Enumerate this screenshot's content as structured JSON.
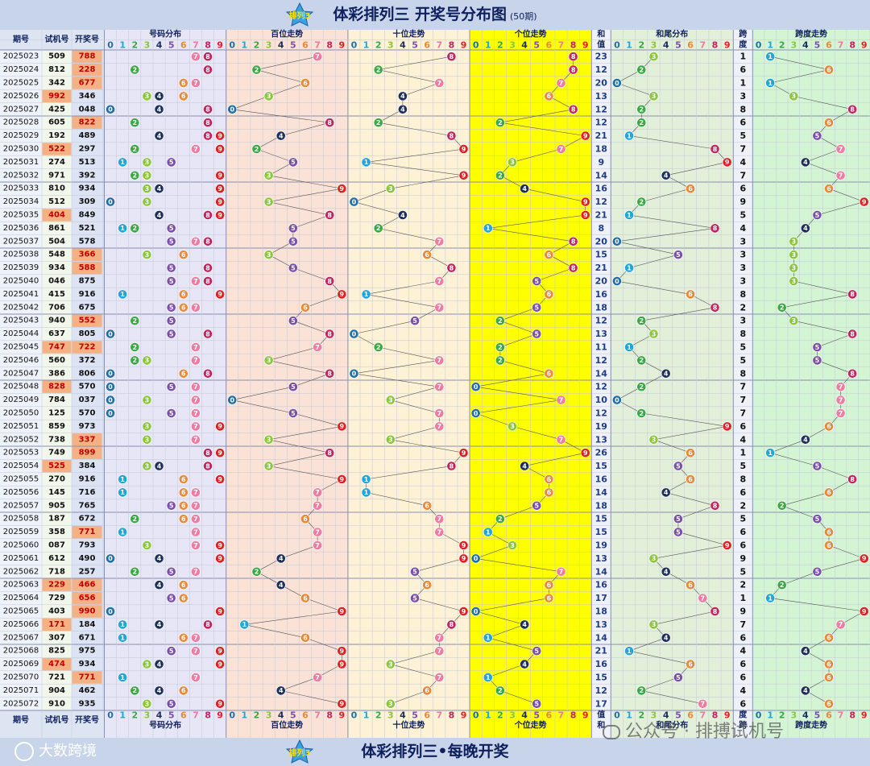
{
  "title": "体彩排列三 开奖号分布图",
  "subtitle": "(50期)",
  "footer": "体彩排列三•每晚开奖",
  "brand": "大数跨境",
  "watermark": "公众号 · 排搏试机号",
  "colors": {
    "title_bg": "#c7d4ea",
    "section_header": "#c7d4ea",
    "trial_highlight": "#f4b183",
    "num_dist_bg": "#e6e6f6",
    "hundreds_bg": "#fbe2d6",
    "tens_bg": "#fdf1d6",
    "units_bg": "#ffff00",
    "sum_tail_bg": "#e2efd9",
    "span_bg": "#d4f5d4"
  },
  "headers": {
    "issue": "期号",
    "trial": "试机号",
    "draw": "开奖号",
    "num_dist": "号码分布",
    "hundreds": "百位走势",
    "tens": "十位走势",
    "units": "个位走势",
    "sum_top": "和",
    "sum_bottom": "值",
    "sum_tail": "和尾分布",
    "span_top": "跨",
    "span_bottom": "度",
    "span_trend": "跨度走势",
    "digits": [
      "0",
      "1",
      "2",
      "3",
      "4",
      "5",
      "6",
      "7",
      "8",
      "9"
    ]
  },
  "chart_data": {
    "type": "table",
    "ball_colors": {
      "0": "#1f6fa8",
      "1": "#22a5d8",
      "2": "#3aa845",
      "3": "#8cc63f",
      "4": "#1d2f5a",
      "5": "#7b4fa8",
      "6": "#e8893a",
      "7": "#ef7ba3",
      "8": "#c0255f",
      "9": "#e02020"
    },
    "rows": [
      {
        "issue": "2025023",
        "trial": "509",
        "draw": "788",
        "sum": "23",
        "span": "1",
        "trial_match": false,
        "draw_match": true
      },
      {
        "issue": "2025024",
        "trial": "812",
        "draw": "228",
        "sum": "12",
        "span": "6",
        "trial_match": false,
        "draw_match": true
      },
      {
        "issue": "2025025",
        "trial": "342",
        "draw": "677",
        "sum": "20",
        "span": "1",
        "trial_match": false,
        "draw_match": true
      },
      {
        "issue": "2025026",
        "trial": "992",
        "draw": "346",
        "sum": "13",
        "span": "3",
        "trial_match": true,
        "draw_match": false
      },
      {
        "issue": "2025027",
        "trial": "425",
        "draw": "048",
        "sum": "12",
        "span": "8",
        "trial_match": false,
        "draw_match": false
      },
      {
        "issue": "2025028",
        "trial": "605",
        "draw": "822",
        "sum": "12",
        "span": "6",
        "trial_match": false,
        "draw_match": true
      },
      {
        "issue": "2025029",
        "trial": "192",
        "draw": "489",
        "sum": "21",
        "span": "5",
        "trial_match": false,
        "draw_match": false
      },
      {
        "issue": "2025030",
        "trial": "522",
        "draw": "297",
        "sum": "18",
        "span": "7",
        "trial_match": true,
        "draw_match": false
      },
      {
        "issue": "2025031",
        "trial": "274",
        "draw": "513",
        "sum": "9",
        "span": "4",
        "trial_match": false,
        "draw_match": false
      },
      {
        "issue": "2025032",
        "trial": "971",
        "draw": "392",
        "sum": "14",
        "span": "7",
        "trial_match": false,
        "draw_match": false
      },
      {
        "issue": "2025033",
        "trial": "810",
        "draw": "934",
        "sum": "16",
        "span": "6",
        "trial_match": false,
        "draw_match": false
      },
      {
        "issue": "2025034",
        "trial": "512",
        "draw": "309",
        "sum": "12",
        "span": "9",
        "trial_match": false,
        "draw_match": false
      },
      {
        "issue": "2025035",
        "trial": "404",
        "draw": "849",
        "sum": "21",
        "span": "5",
        "trial_match": true,
        "draw_match": false
      },
      {
        "issue": "2025036",
        "trial": "861",
        "draw": "521",
        "sum": "8",
        "span": "4",
        "trial_match": false,
        "draw_match": false
      },
      {
        "issue": "2025037",
        "trial": "504",
        "draw": "578",
        "sum": "20",
        "span": "3",
        "trial_match": false,
        "draw_match": false
      },
      {
        "issue": "2025038",
        "trial": "548",
        "draw": "366",
        "sum": "15",
        "span": "3",
        "trial_match": false,
        "draw_match": true
      },
      {
        "issue": "2025039",
        "trial": "934",
        "draw": "588",
        "sum": "21",
        "span": "3",
        "trial_match": false,
        "draw_match": true
      },
      {
        "issue": "2025040",
        "trial": "046",
        "draw": "875",
        "sum": "20",
        "span": "3",
        "trial_match": false,
        "draw_match": false
      },
      {
        "issue": "2025041",
        "trial": "415",
        "draw": "916",
        "sum": "16",
        "span": "8",
        "trial_match": false,
        "draw_match": false
      },
      {
        "issue": "2025042",
        "trial": "706",
        "draw": "675",
        "sum": "18",
        "span": "2",
        "trial_match": false,
        "draw_match": false
      },
      {
        "issue": "2025043",
        "trial": "940",
        "draw": "552",
        "sum": "12",
        "span": "3",
        "trial_match": false,
        "draw_match": true
      },
      {
        "issue": "2025044",
        "trial": "637",
        "draw": "805",
        "sum": "13",
        "span": "8",
        "trial_match": false,
        "draw_match": false
      },
      {
        "issue": "2025045",
        "trial": "747",
        "draw": "722",
        "sum": "11",
        "span": "5",
        "trial_match": true,
        "draw_match": true
      },
      {
        "issue": "2025046",
        "trial": "560",
        "draw": "372",
        "sum": "12",
        "span": "5",
        "trial_match": false,
        "draw_match": false
      },
      {
        "issue": "2025047",
        "trial": "386",
        "draw": "806",
        "sum": "14",
        "span": "8",
        "trial_match": false,
        "draw_match": false
      },
      {
        "issue": "2025048",
        "trial": "828",
        "draw": "570",
        "sum": "12",
        "span": "7",
        "trial_match": true,
        "draw_match": false
      },
      {
        "issue": "2025049",
        "trial": "784",
        "draw": "037",
        "sum": "10",
        "span": "7",
        "trial_match": false,
        "draw_match": false
      },
      {
        "issue": "2025050",
        "trial": "125",
        "draw": "570",
        "sum": "12",
        "span": "7",
        "trial_match": false,
        "draw_match": false
      },
      {
        "issue": "2025051",
        "trial": "859",
        "draw": "973",
        "sum": "19",
        "span": "6",
        "trial_match": false,
        "draw_match": false
      },
      {
        "issue": "2025052",
        "trial": "738",
        "draw": "337",
        "sum": "13",
        "span": "4",
        "trial_match": false,
        "draw_match": true
      },
      {
        "issue": "2025053",
        "trial": "749",
        "draw": "899",
        "sum": "26",
        "span": "1",
        "trial_match": false,
        "draw_match": true
      },
      {
        "issue": "2025054",
        "trial": "525",
        "draw": "384",
        "sum": "15",
        "span": "5",
        "trial_match": true,
        "draw_match": false
      },
      {
        "issue": "2025055",
        "trial": "270",
        "draw": "916",
        "sum": "16",
        "span": "8",
        "trial_match": false,
        "draw_match": false
      },
      {
        "issue": "2025056",
        "trial": "145",
        "draw": "716",
        "sum": "14",
        "span": "6",
        "trial_match": false,
        "draw_match": false
      },
      {
        "issue": "2025057",
        "trial": "905",
        "draw": "765",
        "sum": "18",
        "span": "2",
        "trial_match": false,
        "draw_match": false
      },
      {
        "issue": "2025058",
        "trial": "187",
        "draw": "672",
        "sum": "15",
        "span": "5",
        "trial_match": false,
        "draw_match": false
      },
      {
        "issue": "2025059",
        "trial": "358",
        "draw": "771",
        "sum": "15",
        "span": "6",
        "trial_match": false,
        "draw_match": true
      },
      {
        "issue": "2025060",
        "trial": "087",
        "draw": "793",
        "sum": "19",
        "span": "6",
        "trial_match": false,
        "draw_match": false
      },
      {
        "issue": "2025061",
        "trial": "612",
        "draw": "490",
        "sum": "13",
        "span": "9",
        "trial_match": false,
        "draw_match": false
      },
      {
        "issue": "2025062",
        "trial": "718",
        "draw": "257",
        "sum": "14",
        "span": "5",
        "trial_match": false,
        "draw_match": false
      },
      {
        "issue": "2025063",
        "trial": "229",
        "draw": "466",
        "sum": "16",
        "span": "2",
        "trial_match": true,
        "draw_match": true
      },
      {
        "issue": "2025064",
        "trial": "729",
        "draw": "656",
        "sum": "17",
        "span": "1",
        "trial_match": false,
        "draw_match": true
      },
      {
        "issue": "2025065",
        "trial": "403",
        "draw": "990",
        "sum": "18",
        "span": "9",
        "trial_match": false,
        "draw_match": true
      },
      {
        "issue": "2025066",
        "trial": "171",
        "draw": "184",
        "sum": "13",
        "span": "7",
        "trial_match": true,
        "draw_match": false
      },
      {
        "issue": "2025067",
        "trial": "307",
        "draw": "671",
        "sum": "14",
        "span": "6",
        "trial_match": false,
        "draw_match": false
      },
      {
        "issue": "2025068",
        "trial": "825",
        "draw": "975",
        "sum": "21",
        "span": "4",
        "trial_match": false,
        "draw_match": false
      },
      {
        "issue": "2025069",
        "trial": "474",
        "draw": "934",
        "sum": "16",
        "span": "6",
        "trial_match": true,
        "draw_match": false
      },
      {
        "issue": "2025070",
        "trial": "721",
        "draw": "771",
        "sum": "15",
        "span": "6",
        "trial_match": false,
        "draw_match": true
      },
      {
        "issue": "2025071",
        "trial": "904",
        "draw": "462",
        "sum": "12",
        "span": "4",
        "trial_match": false,
        "draw_match": false
      },
      {
        "issue": "2025072",
        "trial": "910",
        "draw": "935",
        "sum": "17",
        "span": "6",
        "trial_match": false,
        "draw_match": false
      }
    ]
  }
}
